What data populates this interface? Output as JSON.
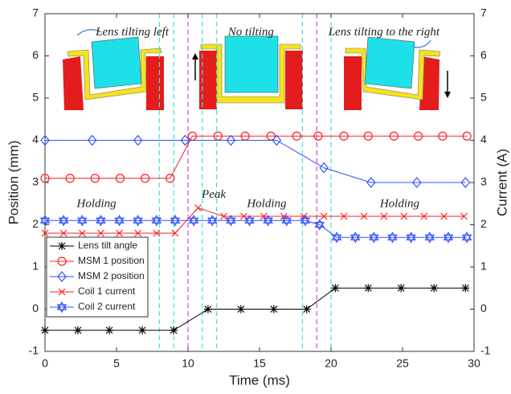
{
  "chart_data": {
    "type": "line",
    "xlabel": "Time (ms)",
    "ylabel": "Position (mm)",
    "y2label": "Current (A)",
    "xlim": [
      0,
      30
    ],
    "xticks": [
      0,
      5,
      10,
      15,
      20,
      25,
      30
    ],
    "ylim": [
      -1,
      7
    ],
    "yticks": [
      -1,
      0,
      1,
      2,
      3,
      4,
      5,
      6,
      7
    ],
    "y2lim": [
      -1,
      7
    ],
    "y2ticks": [
      -1,
      0,
      1,
      2,
      3,
      4,
      5,
      6,
      7
    ],
    "legend": "lower left",
    "vlines": [
      {
        "x": 8,
        "color": "#40e0e0"
      },
      {
        "x": 9,
        "color": "#40e0e0"
      },
      {
        "x": 10,
        "color": "#e040e0"
      },
      {
        "x": 11,
        "color": "#40e0e0"
      },
      {
        "x": 12,
        "color": "#40e0e0"
      },
      {
        "x": 18,
        "color": "#40e0e0"
      },
      {
        "x": 19,
        "color": "#e040e0"
      },
      {
        "x": 20,
        "color": "#40e0e0"
      }
    ],
    "annotations": [
      "Lens tilting left",
      "No tilting",
      "Lens tilting to the right",
      "Holding",
      "Peak",
      "Holding",
      "Holding"
    ],
    "series": [
      {
        "name": "Lens tilt angle",
        "color": "#000000",
        "marker": "asterisk",
        "x": [
          0,
          2.3,
          4.5,
          6.8,
          9,
          11.4,
          13.7,
          16,
          18.3,
          20.3,
          22.6,
          24.9,
          27.2,
          29.4
        ],
        "values": [
          -0.5,
          -0.5,
          -0.5,
          -0.5,
          -0.5,
          0,
          0,
          0,
          0,
          0.5,
          0.5,
          0.5,
          0.5,
          0.5
        ]
      },
      {
        "name": "MSM 1 position",
        "color": "#ff2020",
        "marker": "circle",
        "x": [
          0,
          1.75,
          3.5,
          5.25,
          7,
          8.75,
          10.3,
          12.1,
          14,
          15.8,
          17.6,
          19.1,
          20.9,
          22.6,
          24.4,
          26.1,
          27.8,
          29.5
        ],
        "values": [
          3.1,
          3.1,
          3.1,
          3.1,
          3.1,
          3.1,
          4.1,
          4.1,
          4.1,
          4.1,
          4.1,
          4.1,
          4.1,
          4.1,
          4.1,
          4.1,
          4.1,
          4.1
        ]
      },
      {
        "name": "MSM 2 position",
        "color": "#3050ff",
        "marker": "diamond",
        "x": [
          0,
          3.3,
          6.5,
          9.8,
          13,
          16.2,
          19.5,
          22.8,
          26,
          29.4
        ],
        "values": [
          4,
          4,
          4,
          4,
          4,
          4,
          3.35,
          3,
          3,
          3
        ]
      },
      {
        "name": "Coil 1 current",
        "color": "#ff2020",
        "marker": "x",
        "axis": "y2",
        "x": [
          0,
          1.3,
          2.6,
          3.9,
          5.2,
          6.5,
          7.8,
          9.1,
          10.7,
          12.5,
          13.9,
          15.3,
          16.7,
          18.1,
          19.5,
          20.9,
          22.3,
          23.7,
          25.1,
          26.5,
          27.9,
          29.3
        ],
        "values": [
          1.8,
          1.8,
          1.8,
          1.8,
          1.8,
          1.8,
          1.8,
          1.8,
          2.4,
          2.2,
          2.2,
          2.2,
          2.2,
          2.2,
          2.2,
          2.2,
          2.2,
          2.2,
          2.2,
          2.2,
          2.2,
          2.2
        ]
      },
      {
        "name": "Coil 2 current",
        "color": "#3050ff",
        "marker": "hexagram",
        "axis": "y2",
        "x": [
          0,
          1.3,
          2.6,
          3.9,
          5.2,
          6.5,
          7.8,
          9.1,
          10.4,
          11.7,
          13,
          14.3,
          15.6,
          16.9,
          18.2,
          19.2,
          20.4,
          21.7,
          23,
          24.3,
          25.6,
          26.9,
          28.2,
          29.5
        ],
        "values": [
          2.1,
          2.1,
          2.1,
          2.1,
          2.1,
          2.1,
          2.1,
          2.1,
          2.1,
          2.1,
          2.1,
          2.1,
          2.1,
          2.1,
          2.1,
          2,
          1.7,
          1.7,
          1.7,
          1.7,
          1.7,
          1.7,
          1.7,
          1.7
        ]
      }
    ]
  }
}
